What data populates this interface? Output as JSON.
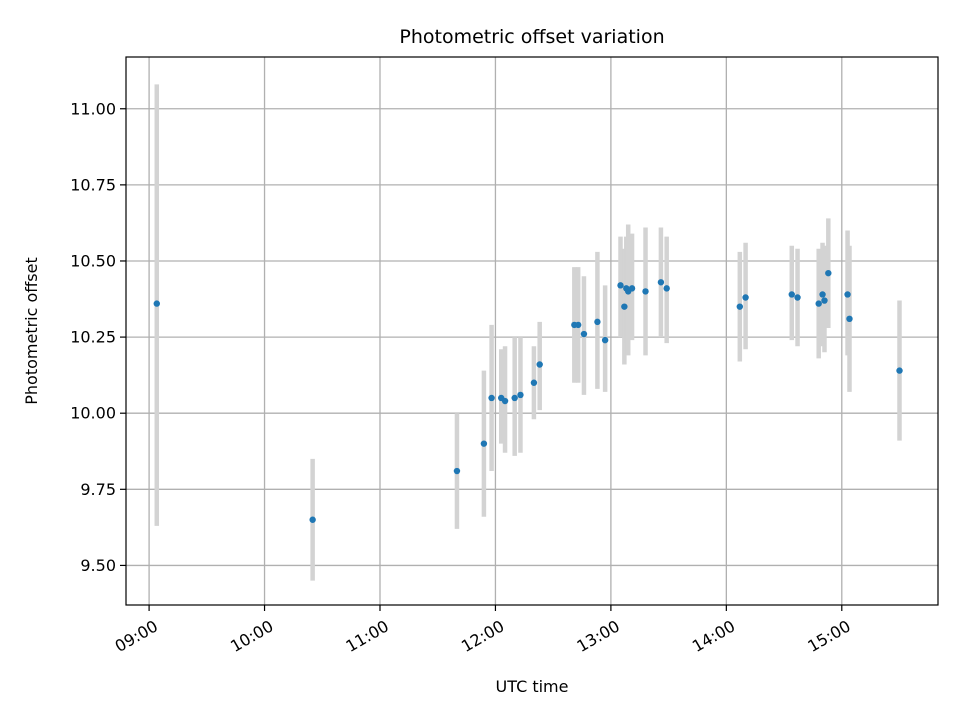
{
  "chart_data": {
    "type": "scatter",
    "title": "Photometric offset variation",
    "xlabel": "UTC time",
    "ylabel": "Photometric offset",
    "xlim": [
      "08:48",
      "15:50"
    ],
    "ylim": [
      9.37,
      11.17
    ],
    "x_ticks": [
      "09:00",
      "10:00",
      "11:00",
      "12:00",
      "13:00",
      "14:00",
      "15:00"
    ],
    "y_ticks": [
      "9.50",
      "9.75",
      "10.00",
      "10.25",
      "10.50",
      "10.75",
      "11.00"
    ],
    "grid": true,
    "error_bar_color": "#d3d3d3",
    "marker_color": "#1f77b4",
    "points": [
      {
        "x": "09:04",
        "y": 10.36,
        "ylow": 9.63,
        "yhigh": 11.08
      },
      {
        "x": "10:25",
        "y": 9.65,
        "ylow": 9.45,
        "yhigh": 9.85
      },
      {
        "x": "11:40",
        "y": 9.81,
        "ylow": 9.62,
        "yhigh": 10.0
      },
      {
        "x": "11:54",
        "y": 9.9,
        "ylow": 9.66,
        "yhigh": 10.14
      },
      {
        "x": "11:58",
        "y": 10.05,
        "ylow": 9.81,
        "yhigh": 10.29
      },
      {
        "x": "12:03",
        "y": 10.05,
        "ylow": 9.9,
        "yhigh": 10.21
      },
      {
        "x": "12:05",
        "y": 10.04,
        "ylow": 9.87,
        "yhigh": 10.22
      },
      {
        "x": "12:10",
        "y": 10.05,
        "ylow": 9.86,
        "yhigh": 10.25
      },
      {
        "x": "12:13",
        "y": 10.06,
        "ylow": 9.87,
        "yhigh": 10.25
      },
      {
        "x": "12:20",
        "y": 10.1,
        "ylow": 9.98,
        "yhigh": 10.22
      },
      {
        "x": "12:23",
        "y": 10.16,
        "ylow": 10.01,
        "yhigh": 10.3
      },
      {
        "x": "12:41",
        "y": 10.29,
        "ylow": 10.1,
        "yhigh": 10.48
      },
      {
        "x": "12:43",
        "y": 10.29,
        "ylow": 10.1,
        "yhigh": 10.48
      },
      {
        "x": "12:46",
        "y": 10.26,
        "ylow": 10.06,
        "yhigh": 10.45
      },
      {
        "x": "12:53",
        "y": 10.3,
        "ylow": 10.08,
        "yhigh": 10.53
      },
      {
        "x": "12:57",
        "y": 10.24,
        "ylow": 10.07,
        "yhigh": 10.42
      },
      {
        "x": "13:05",
        "y": 10.42,
        "ylow": 10.25,
        "yhigh": 10.58
      },
      {
        "x": "13:07",
        "y": 10.35,
        "ylow": 10.16,
        "yhigh": 10.54
      },
      {
        "x": "13:08",
        "y": 10.41,
        "ylow": 10.23,
        "yhigh": 10.58
      },
      {
        "x": "13:09",
        "y": 10.4,
        "ylow": 10.19,
        "yhigh": 10.62
      },
      {
        "x": "13:11",
        "y": 10.41,
        "ylow": 10.24,
        "yhigh": 10.59
      },
      {
        "x": "13:18",
        "y": 10.4,
        "ylow": 10.19,
        "yhigh": 10.61
      },
      {
        "x": "13:26",
        "y": 10.43,
        "ylow": 10.25,
        "yhigh": 10.61
      },
      {
        "x": "13:29",
        "y": 10.41,
        "ylow": 10.23,
        "yhigh": 10.58
      },
      {
        "x": "14:07",
        "y": 10.35,
        "ylow": 10.17,
        "yhigh": 10.53
      },
      {
        "x": "14:10",
        "y": 10.38,
        "ylow": 10.21,
        "yhigh": 10.56
      },
      {
        "x": "14:34",
        "y": 10.39,
        "ylow": 10.24,
        "yhigh": 10.55
      },
      {
        "x": "14:37",
        "y": 10.38,
        "ylow": 10.22,
        "yhigh": 10.54
      },
      {
        "x": "14:48",
        "y": 10.36,
        "ylow": 10.18,
        "yhigh": 10.54
      },
      {
        "x": "14:50",
        "y": 10.39,
        "ylow": 10.22,
        "yhigh": 10.56
      },
      {
        "x": "14:51",
        "y": 10.37,
        "ylow": 10.2,
        "yhigh": 10.55
      },
      {
        "x": "14:53",
        "y": 10.46,
        "ylow": 10.28,
        "yhigh": 10.64
      },
      {
        "x": "15:03",
        "y": 10.39,
        "ylow": 10.19,
        "yhigh": 10.6
      },
      {
        "x": "15:04",
        "y": 10.31,
        "ylow": 10.07,
        "yhigh": 10.55
      },
      {
        "x": "15:30",
        "y": 10.14,
        "ylow": 9.91,
        "yhigh": 10.37
      }
    ]
  }
}
